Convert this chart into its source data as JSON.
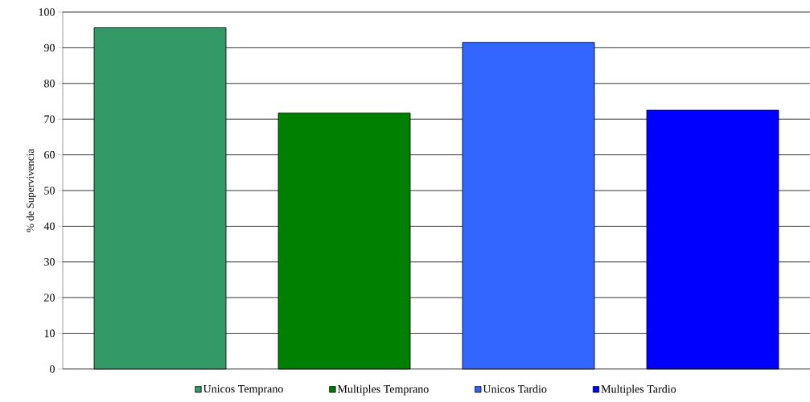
{
  "chart_data": {
    "type": "bar",
    "ylabel": "% de Supervivencia",
    "categories": [
      null
    ],
    "series": [
      {
        "name": "Unicos Temprano",
        "color": "#339966",
        "values": [
          95.6
        ]
      },
      {
        "name": "Multiples Temprano",
        "color": "#008000",
        "values": [
          71.7
        ]
      },
      {
        "name": "Unicos Tardio",
        "color": "#3366ff",
        "values": [
          91.5
        ]
      },
      {
        "name": "Multiples Tardio",
        "color": "#0000ff",
        "values": [
          72.5
        ]
      }
    ],
    "ylim": [
      0,
      100
    ],
    "yticks": [
      0,
      10,
      20,
      30,
      40,
      50,
      60,
      70,
      80,
      90,
      100
    ],
    "grid": "y",
    "legend": "bottom"
  }
}
